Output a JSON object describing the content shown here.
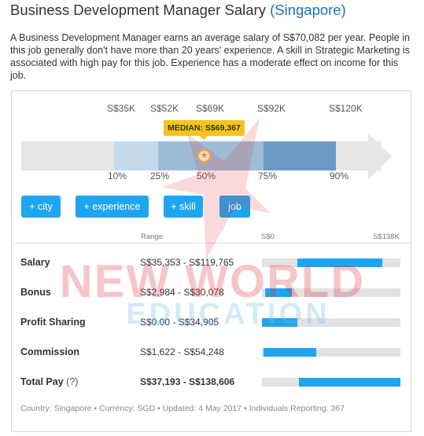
{
  "page": {
    "title": "Business Development Manager Salary",
    "location": "(Singapore)",
    "description": "A Business Development Manager earns an average salary of S$70,082 per year. People in this job generally don't have more than 20 years' experience. A skill in Strategic Marketing is associated with high pay for this job. Experience has a moderate effect on income for this job."
  },
  "distribution": {
    "tick_values": [
      "S$35K",
      "S$52K",
      "S$69K",
      "S$92K",
      "S$120K"
    ],
    "percentiles": [
      "10%",
      "25%",
      "50%",
      "75%",
      "90%"
    ],
    "median_label": "MEDIAN: S$69,367",
    "star_glyph": "★"
  },
  "filters": [
    "+ city",
    "+ experience",
    "+ skill",
    "job"
  ],
  "table": {
    "range_header": "Range",
    "scale_min": "S$0",
    "scale_max": "S$138K",
    "scale_max_value": 138,
    "rows": [
      {
        "label": "Salary",
        "range": "S$35,353 - S$119,765",
        "low": 35.353,
        "high": 119.765
      },
      {
        "label": "Bonus",
        "range": "S$2,984 - S$30,078",
        "low": 2.984,
        "high": 30.078
      },
      {
        "label": "Profit Sharing",
        "range": "S$0.00 - S$34,905",
        "low": 0,
        "high": 34.905
      },
      {
        "label": "Commission",
        "range": "S$1,622 - S$54,248",
        "low": 1.622,
        "high": 54.248
      },
      {
        "label": "Total Pay",
        "help": "(?)",
        "range": "S$37,193 - S$138,606",
        "low": 37.193,
        "high": 138.606
      }
    ]
  },
  "footer": "Country: Singapore • Currency: SGD • Updated: 4 May 2017 • Individuals Reporting: 367",
  "watermark": {
    "line1": "NEW WORLD",
    "line2": "EDUCATION"
  },
  "colors": {
    "accent": "#1fa5ef",
    "band_outer": "#c3d9ea",
    "band_inner": "#9ebcd6",
    "band_mid": "#6d9ac5",
    "median": "#f5c518",
    "link": "#1a73c4"
  }
}
